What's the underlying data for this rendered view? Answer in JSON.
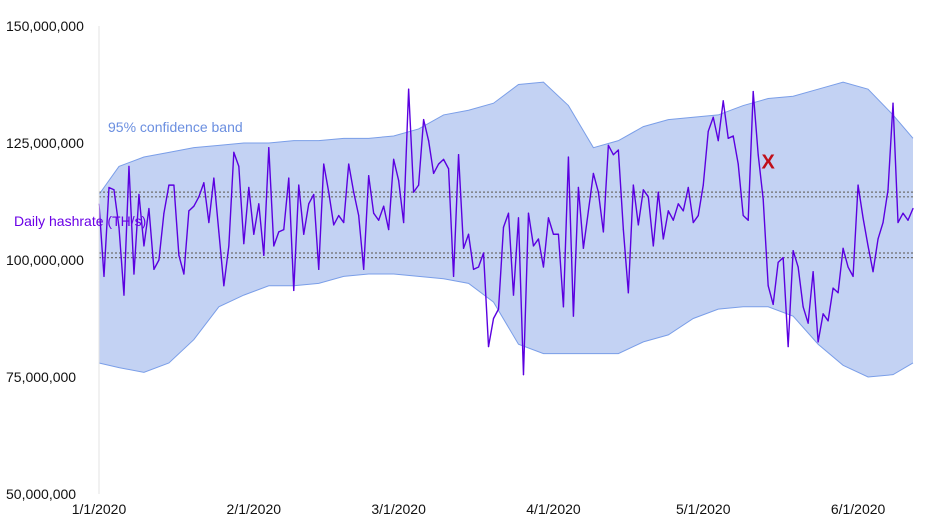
{
  "chart_data": {
    "type": "line",
    "title": "",
    "xlabel": "",
    "ylabel": "",
    "ylim": [
      50000000,
      150000000
    ],
    "xlim": [
      "2020-01-01",
      "2020-06-12"
    ],
    "y_ticks": [
      {
        "value": 50000000,
        "label": "50,000,000"
      },
      {
        "value": 75000000,
        "label": "75,000,000"
      },
      {
        "value": 100000000,
        "label": "100,000,000"
      },
      {
        "value": 125000000,
        "label": "125,000,000"
      },
      {
        "value": 150000000,
        "label": "150,000,000"
      }
    ],
    "x_ticks": [
      {
        "value": "2020-01-01",
        "label": "1/1/2020"
      },
      {
        "value": "2020-02-01",
        "label": "2/1/2020"
      },
      {
        "value": "2020-03-01",
        "label": "3/1/2020"
      },
      {
        "value": "2020-04-01",
        "label": "4/1/2020"
      },
      {
        "value": "2020-05-01",
        "label": "5/1/2020"
      },
      {
        "value": "2020-06-01",
        "label": "6/1/2020"
      }
    ],
    "grid": false,
    "reference_lines": [
      {
        "style": "dotted",
        "values": [
          114500000,
          113500000
        ]
      },
      {
        "style": "dotted",
        "values": [
          101500000,
          100500000
        ]
      }
    ],
    "annotations": [
      {
        "text": "95% confidence band",
        "series": "band",
        "color": "#6b8fe0"
      },
      {
        "text": "Daily hashrate (TH/s)",
        "series": "line",
        "color": "#6a00e6"
      },
      {
        "text": "X",
        "marker": "anomaly",
        "x": "2020-05-14",
        "y": 121000000,
        "color": "#c0101a"
      }
    ],
    "band": {
      "color": "#c3d2f3",
      "edge_color": "#7a9ee8",
      "x": [
        "2020-01-01",
        "2020-01-05",
        "2020-01-10",
        "2020-01-15",
        "2020-01-20",
        "2020-01-25",
        "2020-01-30",
        "2020-02-04",
        "2020-02-09",
        "2020-02-14",
        "2020-02-19",
        "2020-02-24",
        "2020-02-29",
        "2020-03-05",
        "2020-03-10",
        "2020-03-15",
        "2020-03-20",
        "2020-03-25",
        "2020-03-30",
        "2020-04-04",
        "2020-04-09",
        "2020-04-14",
        "2020-04-19",
        "2020-04-24",
        "2020-04-29",
        "2020-05-04",
        "2020-05-09",
        "2020-05-14",
        "2020-05-19",
        "2020-05-24",
        "2020-05-29",
        "2020-06-03",
        "2020-06-08",
        "2020-06-12"
      ],
      "upper": [
        114000000,
        120000000,
        122000000,
        123000000,
        124000000,
        124500000,
        125000000,
        125000000,
        125500000,
        125500000,
        126000000,
        126000000,
        126500000,
        128000000,
        131000000,
        132000000,
        133500000,
        137500000,
        138000000,
        133000000,
        124000000,
        125500000,
        128500000,
        130000000,
        130500000,
        131000000,
        133000000,
        134500000,
        135000000,
        136500000,
        138000000,
        136500000,
        131000000,
        126000000
      ],
      "lower": [
        78000000,
        77000000,
        76000000,
        78000000,
        83000000,
        90000000,
        92500000,
        94500000,
        94500000,
        95000000,
        96500000,
        97000000,
        97000000,
        96500000,
        96000000,
        95000000,
        91000000,
        82000000,
        80000000,
        80000000,
        80000000,
        80000000,
        82500000,
        84000000,
        87500000,
        89500000,
        90000000,
        90000000,
        88000000,
        82000000,
        77500000,
        75000000,
        75500000,
        78000000
      ]
    },
    "series": [
      {
        "color": "#5b00e0",
        "start": "2020-01-01",
        "step_days": 1,
        "values": [
          112000000,
          96500000,
          115500000,
          115000000,
          107000000,
          92500000,
          120000000,
          97000000,
          114000000,
          103000000,
          111000000,
          98000000,
          100000000,
          110000000,
          116000000,
          116000000,
          101000000,
          97000000,
          110500000,
          111500000,
          113500000,
          116500000,
          108000000,
          117500000,
          106000000,
          94500000,
          103000000,
          123000000,
          120000000,
          103500000,
          115500000,
          105500000,
          112000000,
          101000000,
          124000000,
          103000000,
          106000000,
          106500000,
          117500000,
          93500000,
          116000000,
          105500000,
          112000000,
          114000000,
          98000000,
          120500000,
          114500000,
          107500000,
          109500000,
          108000000,
          120500000,
          114500000,
          109500000,
          98000000,
          118000000,
          110000000,
          108500000,
          111500000,
          106500000,
          121500000,
          117000000,
          108000000,
          136500000,
          114500000,
          116000000,
          130000000,
          125500000,
          118500000,
          120500000,
          121500000,
          119500000,
          96500000,
          122500000,
          102500000,
          105500000,
          98000000,
          98500000,
          101500000,
          81500000,
          87500000,
          89500000,
          107000000,
          110000000,
          92500000,
          109000000,
          75500000,
          110000000,
          103000000,
          104500000,
          98500000,
          109000000,
          105500000,
          105500000,
          90000000,
          122000000,
          88000000,
          115500000,
          102500000,
          110500000,
          118500000,
          114500000,
          106000000,
          124500000,
          122500000,
          123500000,
          106500000,
          93000000,
          116000000,
          107500000,
          115000000,
          113500000,
          103000000,
          114500000,
          104500000,
          110500000,
          108500000,
          112000000,
          110500000,
          115500000,
          108000000,
          109500000,
          116000000,
          127500000,
          130500000,
          125500000,
          134000000,
          126000000,
          126500000,
          120500000,
          109500000,
          108500000,
          136000000,
          122500000,
          113000000,
          94500000,
          90500000,
          99500000,
          100500000,
          81500000,
          102000000,
          98500000,
          90000000,
          86500000,
          97500000,
          82500000,
          88500000,
          87000000,
          94000000,
          93000000,
          102500000,
          98500000,
          96500000,
          116000000,
          109000000,
          103000000,
          97500000,
          104500000,
          108000000,
          115000000,
          133500000,
          108000000,
          110000000,
          108500000,
          111000000
        ]
      }
    ]
  }
}
